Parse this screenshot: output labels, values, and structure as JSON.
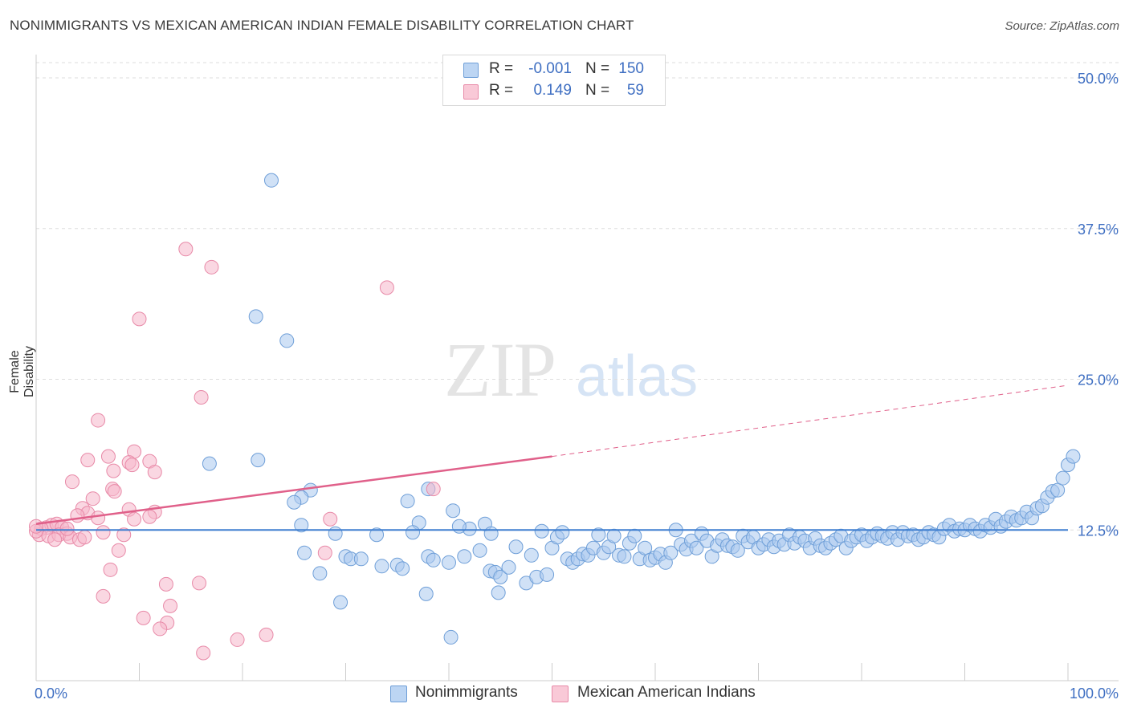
{
  "title": "NONIMMIGRANTS VS MEXICAN AMERICAN INDIAN FEMALE DISABILITY CORRELATION CHART",
  "source": "Source: ZipAtlas.com",
  "watermark": {
    "zip": "ZIP",
    "atlas": "atlas"
  },
  "legend": {
    "rows": [
      {
        "r_label": "R =",
        "r_value": "-0.001",
        "n_label": "N =",
        "n_value": "150"
      },
      {
        "r_label": "R =",
        "r_value": "0.149",
        "n_label": "N =",
        "n_value": "59"
      }
    ]
  },
  "colors": {
    "blue_fill": "#a9c8ef",
    "blue_stroke": "#6f9fd8",
    "blue_line": "#3f7fd0",
    "pink_fill": "#f6b7ca",
    "pink_stroke": "#e88aa8",
    "pink_line": "#e0608a",
    "axis_text": "#3f6fc2",
    "grid": "#dddddd"
  },
  "chart_data": {
    "type": "scatter",
    "title": "NONIMMIGRANTS VS MEXICAN AMERICAN INDIAN FEMALE DISABILITY CORRELATION CHART",
    "xlabel": "",
    "ylabel": "Female Disability",
    "xlim": [
      0,
      100
    ],
    "ylim": [
      0,
      50
    ],
    "x_tick_labels": [
      "0.0%",
      "100.0%"
    ],
    "y_ticks": [
      12.5,
      25.0,
      37.5,
      50.0
    ],
    "y_tick_labels": [
      "12.5%",
      "25.0%",
      "37.5%",
      "50.0%"
    ],
    "grid": true,
    "legend_position": "bottom-center",
    "series": [
      {
        "name": "Nonimmigrants",
        "color": "#a9c8ef",
        "trend": {
          "x": [
            0,
            100
          ],
          "y": [
            12.5,
            12.5
          ]
        },
        "points": [
          [
            22.8,
            41.5
          ],
          [
            21.3,
            30.2
          ],
          [
            24.3,
            28.2
          ],
          [
            16.8,
            18.0
          ],
          [
            21.5,
            18.3
          ],
          [
            26.6,
            15.8
          ],
          [
            25.7,
            15.2
          ],
          [
            25.0,
            14.8
          ],
          [
            36.0,
            14.9
          ],
          [
            38.0,
            15.9
          ],
          [
            40.4,
            14.1
          ],
          [
            42.0,
            12.6
          ],
          [
            43.5,
            13.0
          ],
          [
            37.1,
            13.1
          ],
          [
            41.0,
            12.8
          ],
          [
            44.1,
            12.2
          ],
          [
            49.0,
            12.4
          ],
          [
            25.7,
            12.9
          ],
          [
            29.0,
            12.2
          ],
          [
            36.5,
            12.3
          ],
          [
            33.0,
            12.1
          ],
          [
            26.0,
            10.6
          ],
          [
            30.0,
            10.3
          ],
          [
            30.5,
            10.1
          ],
          [
            31.5,
            10.1
          ],
          [
            33.5,
            9.5
          ],
          [
            35.0,
            9.6
          ],
          [
            35.5,
            9.3
          ],
          [
            38.0,
            10.3
          ],
          [
            38.5,
            10.0
          ],
          [
            40.0,
            9.8
          ],
          [
            41.5,
            10.3
          ],
          [
            43.0,
            10.8
          ],
          [
            44.0,
            9.1
          ],
          [
            44.5,
            9.0
          ],
          [
            45.0,
            8.6
          ],
          [
            45.8,
            9.4
          ],
          [
            46.5,
            11.1
          ],
          [
            48.0,
            10.4
          ],
          [
            47.5,
            8.1
          ],
          [
            48.5,
            8.6
          ],
          [
            49.5,
            8.8
          ],
          [
            27.5,
            8.9
          ],
          [
            29.5,
            6.5
          ],
          [
            37.8,
            7.2
          ],
          [
            44.8,
            7.3
          ],
          [
            40.2,
            3.6
          ],
          [
            50.0,
            11.0
          ],
          [
            50.5,
            11.9
          ],
          [
            51.0,
            12.3
          ],
          [
            51.5,
            10.1
          ],
          [
            52.0,
            9.8
          ],
          [
            52.5,
            10.1
          ],
          [
            53.0,
            10.5
          ],
          [
            53.5,
            10.4
          ],
          [
            54.0,
            11.0
          ],
          [
            54.5,
            12.1
          ],
          [
            55.0,
            10.6
          ],
          [
            55.5,
            11.1
          ],
          [
            56.0,
            12.0
          ],
          [
            56.5,
            10.4
          ],
          [
            57.0,
            10.3
          ],
          [
            57.5,
            11.4
          ],
          [
            58.0,
            12.0
          ],
          [
            58.5,
            10.1
          ],
          [
            59.0,
            11.0
          ],
          [
            59.5,
            10.0
          ],
          [
            60.0,
            10.2
          ],
          [
            60.5,
            10.5
          ],
          [
            61.0,
            9.8
          ],
          [
            61.5,
            10.6
          ],
          [
            62.0,
            12.5
          ],
          [
            62.5,
            11.3
          ],
          [
            63.0,
            10.9
          ],
          [
            63.5,
            11.6
          ],
          [
            64.0,
            11.0
          ],
          [
            64.5,
            12.2
          ],
          [
            65.0,
            11.6
          ],
          [
            65.5,
            10.3
          ],
          [
            66.0,
            11.2
          ],
          [
            66.5,
            11.7
          ],
          [
            67.0,
            11.2
          ],
          [
            67.5,
            11.1
          ],
          [
            68.0,
            10.8
          ],
          [
            68.5,
            12.0
          ],
          [
            69.0,
            11.5
          ],
          [
            69.5,
            11.9
          ],
          [
            70.0,
            11.0
          ],
          [
            70.5,
            11.3
          ],
          [
            71.0,
            11.7
          ],
          [
            71.5,
            11.1
          ],
          [
            72.0,
            11.6
          ],
          [
            72.5,
            11.3
          ],
          [
            73.0,
            12.1
          ],
          [
            73.5,
            11.4
          ],
          [
            74.0,
            11.9
          ],
          [
            74.5,
            11.6
          ],
          [
            75.0,
            11.0
          ],
          [
            75.5,
            11.8
          ],
          [
            76.0,
            11.2
          ],
          [
            76.5,
            11.0
          ],
          [
            77.0,
            11.4
          ],
          [
            77.5,
            11.7
          ],
          [
            78.0,
            12.0
          ],
          [
            78.5,
            11.0
          ],
          [
            79.0,
            11.6
          ],
          [
            79.5,
            11.9
          ],
          [
            80.0,
            12.1
          ],
          [
            80.5,
            11.6
          ],
          [
            81.0,
            11.9
          ],
          [
            81.5,
            12.2
          ],
          [
            82.0,
            12.0
          ],
          [
            82.5,
            11.8
          ],
          [
            83.0,
            12.3
          ],
          [
            83.5,
            11.7
          ],
          [
            84.0,
            12.3
          ],
          [
            84.5,
            12.0
          ],
          [
            85.0,
            12.1
          ],
          [
            85.5,
            11.7
          ],
          [
            86.0,
            11.9
          ],
          [
            86.5,
            12.3
          ],
          [
            87.0,
            12.1
          ],
          [
            87.5,
            11.9
          ],
          [
            88.0,
            12.6
          ],
          [
            88.5,
            12.9
          ],
          [
            89.0,
            12.4
          ],
          [
            89.5,
            12.6
          ],
          [
            90.0,
            12.5
          ],
          [
            90.5,
            12.9
          ],
          [
            91.0,
            12.6
          ],
          [
            91.5,
            12.4
          ],
          [
            92.0,
            12.9
          ],
          [
            92.5,
            12.7
          ],
          [
            93.0,
            13.4
          ],
          [
            93.5,
            12.8
          ],
          [
            94.0,
            13.2
          ],
          [
            94.5,
            13.6
          ],
          [
            95.0,
            13.3
          ],
          [
            95.5,
            13.5
          ],
          [
            96.0,
            14.0
          ],
          [
            96.5,
            13.5
          ],
          [
            97.0,
            14.3
          ],
          [
            97.5,
            14.5
          ],
          [
            98.0,
            15.2
          ],
          [
            98.5,
            15.7
          ],
          [
            99.0,
            15.8
          ],
          [
            99.5,
            16.8
          ],
          [
            100.0,
            17.9
          ],
          [
            100.5,
            18.6
          ]
        ]
      },
      {
        "name": "Mexican American Indians",
        "color": "#f6b7ca",
        "trend": {
          "x": [
            0,
            50
          ],
          "y": [
            13.0,
            18.6
          ]
        },
        "trend_dashed": {
          "x": [
            50,
            100
          ],
          "y": [
            18.6,
            24.5
          ]
        },
        "points": [
          [
            14.5,
            35.8
          ],
          [
            17.0,
            34.3
          ],
          [
            34.0,
            32.6
          ],
          [
            10.0,
            30.0
          ],
          [
            16.0,
            23.5
          ],
          [
            6.0,
            21.6
          ],
          [
            9.5,
            19.0
          ],
          [
            7.0,
            18.6
          ],
          [
            5.0,
            18.3
          ],
          [
            9.0,
            18.1
          ],
          [
            11.0,
            18.2
          ],
          [
            9.3,
            17.9
          ],
          [
            7.5,
            17.4
          ],
          [
            11.5,
            17.3
          ],
          [
            3.5,
            16.5
          ],
          [
            7.4,
            15.9
          ],
          [
            7.6,
            15.7
          ],
          [
            38.5,
            15.9
          ],
          [
            5.5,
            15.1
          ],
          [
            4.5,
            14.3
          ],
          [
            9.0,
            14.2
          ],
          [
            11.5,
            14.0
          ],
          [
            5.0,
            13.9
          ],
          [
            4.0,
            13.7
          ],
          [
            6.0,
            13.5
          ],
          [
            9.5,
            13.4
          ],
          [
            11.0,
            13.6
          ],
          [
            28.5,
            13.4
          ],
          [
            1.0,
            12.7
          ],
          [
            1.5,
            12.9
          ],
          [
            2.0,
            13.0
          ],
          [
            0.5,
            12.6
          ],
          [
            2.5,
            12.7
          ],
          [
            3.0,
            12.2
          ],
          [
            0.3,
            12.1
          ],
          [
            1.2,
            12.0
          ],
          [
            2.2,
            12.1
          ],
          [
            6.5,
            12.3
          ],
          [
            8.5,
            12.1
          ],
          [
            0.0,
            12.4
          ],
          [
            1.8,
            11.7
          ],
          [
            3.3,
            11.9
          ],
          [
            4.2,
            11.7
          ],
          [
            4.7,
            11.9
          ],
          [
            28.0,
            10.6
          ],
          [
            8.0,
            10.8
          ],
          [
            7.2,
            9.2
          ],
          [
            12.6,
            8.0
          ],
          [
            15.8,
            8.1
          ],
          [
            6.5,
            7.0
          ],
          [
            13.0,
            6.2
          ],
          [
            10.4,
            5.2
          ],
          [
            12.7,
            4.8
          ],
          [
            12.0,
            4.3
          ],
          [
            19.5,
            3.4
          ],
          [
            22.3,
            3.8
          ],
          [
            16.2,
            2.3
          ],
          [
            3.0,
            12.6
          ],
          [
            0.0,
            12.8
          ]
        ]
      }
    ]
  },
  "bottom_legend": [
    "Nonimmigrants",
    "Mexican American Indians"
  ]
}
